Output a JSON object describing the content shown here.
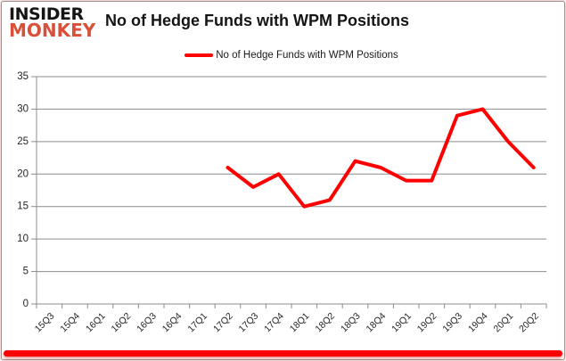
{
  "brand": {
    "line1": "INSIDER",
    "line2": "MONKEY"
  },
  "header": {
    "title": "No of Hedge Funds with WPM Positions"
  },
  "legend": {
    "label": "No of Hedge Funds with WPM Positions"
  },
  "colors": {
    "line": "#fe0000",
    "grid": "#8c8c8c",
    "axis": "#8c8c8c",
    "tick_label": "#262626",
    "brand_black": "#151515",
    "brand_red": "#d8503a",
    "bottom_bar": "#fe0000"
  },
  "chart_data": {
    "type": "line",
    "title": "No of Hedge Funds with WPM Positions",
    "categories": [
      "15Q3",
      "15Q4",
      "16Q1",
      "16Q2",
      "16Q3",
      "16Q4",
      "17Q1",
      "17Q2",
      "17Q3",
      "17Q4",
      "18Q1",
      "18Q2",
      "18Q3",
      "18Q4",
      "19Q1",
      "19Q2",
      "19Q3",
      "19Q4",
      "20Q1",
      "20Q2"
    ],
    "series": [
      {
        "name": "No of Hedge Funds with WPM Positions",
        "color": "#fe0000",
        "values": [
          null,
          null,
          null,
          null,
          null,
          null,
          null,
          21,
          18,
          20,
          15,
          16,
          22,
          21,
          19,
          19,
          29,
          30,
          25,
          21
        ]
      }
    ],
    "ylim": [
      0,
      35
    ],
    "ytick_step": 5,
    "grid": true,
    "legend_position": "top"
  }
}
